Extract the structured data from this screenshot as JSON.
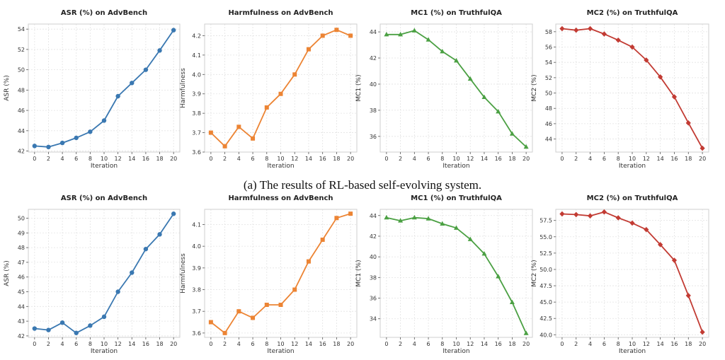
{
  "captions": {
    "a": "(a) The results of RL-based self-evolving system.",
    "b": ""
  },
  "chart_data": [
    {
      "type": "line",
      "row": 0,
      "col": 0,
      "title": "ASR (%) on AdvBench",
      "xlabel": "Iteration",
      "ylabel": "ASR (%)",
      "color": "#3a78b1",
      "marker": "circle",
      "x": [
        0,
        2,
        4,
        6,
        8,
        10,
        12,
        14,
        16,
        18,
        20
      ],
      "values": [
        42.5,
        42.4,
        42.8,
        43.3,
        43.9,
        45.0,
        47.4,
        48.7,
        50.0,
        51.9,
        53.9
      ],
      "ylim": [
        41.9,
        54.5
      ],
      "yticks": [
        42,
        44,
        46,
        48,
        50,
        52,
        54
      ],
      "ytick_labels": [
        "42",
        "44",
        "46",
        "48",
        "50",
        "52",
        "54"
      ],
      "xticks": [
        0,
        2,
        4,
        6,
        8,
        10,
        12,
        14,
        16,
        18,
        20
      ],
      "grid": true
    },
    {
      "type": "line",
      "row": 0,
      "col": 1,
      "title": "Harmfulness on AdvBench",
      "xlabel": "Iteration",
      "ylabel": "Harmfulness",
      "color": "#ec8434",
      "marker": "square",
      "x": [
        0,
        2,
        4,
        6,
        8,
        10,
        12,
        14,
        16,
        18,
        20
      ],
      "values": [
        3.7,
        3.63,
        3.73,
        3.67,
        3.83,
        3.9,
        4.0,
        4.13,
        4.2,
        4.23,
        4.2
      ],
      "ylim": [
        3.6,
        4.26
      ],
      "yticks": [
        3.6,
        3.7,
        3.8,
        3.9,
        4.0,
        4.1,
        4.2
      ],
      "ytick_labels": [
        "3.6",
        "3.7",
        "3.8",
        "3.9",
        "4.0",
        "4.1",
        "4.2"
      ],
      "xticks": [
        0,
        2,
        4,
        6,
        8,
        10,
        12,
        14,
        16,
        18,
        20
      ],
      "grid": true
    },
    {
      "type": "line",
      "row": 0,
      "col": 2,
      "title": "MC1 (%) on TruthfulQA",
      "xlabel": "Iteration",
      "ylabel": "MC1 (%)",
      "color": "#4ba043",
      "marker": "triangle",
      "x": [
        0,
        2,
        4,
        6,
        8,
        10,
        12,
        14,
        16,
        18,
        20
      ],
      "values": [
        43.8,
        43.8,
        44.1,
        43.4,
        42.5,
        41.8,
        40.4,
        39.0,
        37.9,
        36.2,
        35.2
      ],
      "ylim": [
        34.8,
        44.6
      ],
      "yticks": [
        36,
        38,
        40,
        42,
        44
      ],
      "ytick_labels": [
        "36",
        "38",
        "40",
        "42",
        "44"
      ],
      "xticks": [
        0,
        2,
        4,
        6,
        8,
        10,
        12,
        14,
        16,
        18,
        20
      ],
      "grid": true
    },
    {
      "type": "line",
      "row": 0,
      "col": 3,
      "title": "MC2 (%) on TruthfulQA",
      "xlabel": "Iteration",
      "ylabel": "MC2 (%)",
      "color": "#c23b33",
      "marker": "diamond",
      "x": [
        0,
        2,
        4,
        6,
        8,
        10,
        12,
        14,
        16,
        18,
        20
      ],
      "values": [
        58.4,
        58.2,
        58.4,
        57.7,
        56.9,
        56.0,
        54.3,
        52.1,
        49.5,
        46.1,
        42.8
      ],
      "ylim": [
        42.3,
        59.0
      ],
      "yticks": [
        44,
        46,
        48,
        50,
        52,
        54,
        56,
        58
      ],
      "ytick_labels": [
        "44",
        "46",
        "48",
        "50",
        "52",
        "54",
        "56",
        "58"
      ],
      "xticks": [
        0,
        2,
        4,
        6,
        8,
        10,
        12,
        14,
        16,
        18,
        20
      ],
      "grid": true
    },
    {
      "type": "line",
      "row": 1,
      "col": 0,
      "title": "ASR (%) on AdvBench",
      "xlabel": "Iteration",
      "ylabel": "ASR (%)",
      "color": "#3a78b1",
      "marker": "circle",
      "x": [
        0,
        2,
        4,
        6,
        8,
        10,
        12,
        14,
        16,
        18,
        20
      ],
      "values": [
        42.5,
        42.4,
        42.9,
        42.2,
        42.7,
        43.3,
        45.0,
        46.3,
        47.9,
        48.9,
        50.3
      ],
      "ylim": [
        41.9,
        50.6
      ],
      "yticks": [
        42,
        43,
        44,
        45,
        46,
        47,
        48,
        49,
        50
      ],
      "ytick_labels": [
        "42",
        "43",
        "44",
        "45",
        "46",
        "47",
        "48",
        "49",
        "50"
      ],
      "xticks": [
        0,
        2,
        4,
        6,
        8,
        10,
        12,
        14,
        16,
        18,
        20
      ],
      "grid": true
    },
    {
      "type": "line",
      "row": 1,
      "col": 1,
      "title": "Harmfulness on AdvBench",
      "xlabel": "Iteration",
      "ylabel": "Harmfulness",
      "color": "#ec8434",
      "marker": "square",
      "x": [
        0,
        2,
        4,
        6,
        8,
        10,
        12,
        14,
        16,
        18,
        20
      ],
      "values": [
        3.65,
        3.6,
        3.7,
        3.67,
        3.73,
        3.73,
        3.8,
        3.93,
        4.03,
        4.13,
        4.15
      ],
      "ylim": [
        3.58,
        4.17
      ],
      "yticks": [
        3.6,
        3.7,
        3.8,
        3.9,
        4.0,
        4.1
      ],
      "ytick_labels": [
        "3.6",
        "3.7",
        "3.8",
        "3.9",
        "4.0",
        "4.1"
      ],
      "xticks": [
        0,
        2,
        4,
        6,
        8,
        10,
        12,
        14,
        16,
        18,
        20
      ],
      "grid": true
    },
    {
      "type": "line",
      "row": 1,
      "col": 2,
      "title": "MC1 (%) on TruthfulQA",
      "xlabel": "Iteration",
      "ylabel": "MC1 (%)",
      "color": "#4ba043",
      "marker": "triangle",
      "x": [
        0,
        2,
        4,
        6,
        8,
        10,
        12,
        14,
        16,
        18,
        20
      ],
      "values": [
        43.8,
        43.5,
        43.8,
        43.7,
        43.2,
        42.8,
        41.7,
        40.3,
        38.1,
        35.6,
        32.6
      ],
      "ylim": [
        32.2,
        44.6
      ],
      "yticks": [
        34,
        36,
        38,
        40,
        42,
        44
      ],
      "ytick_labels": [
        "34",
        "36",
        "38",
        "40",
        "42",
        "44"
      ],
      "xticks": [
        0,
        2,
        4,
        6,
        8,
        10,
        12,
        14,
        16,
        18,
        20
      ],
      "grid": true
    },
    {
      "type": "line",
      "row": 1,
      "col": 3,
      "title": "MC2 (%) on TruthfulQA",
      "xlabel": "Iteration",
      "ylabel": "MC2 (%)",
      "color": "#c23b33",
      "marker": "diamond",
      "x": [
        0,
        2,
        4,
        6,
        8,
        10,
        12,
        14,
        16,
        18,
        20
      ],
      "values": [
        58.5,
        58.4,
        58.2,
        58.8,
        57.9,
        57.1,
        56.1,
        53.8,
        51.4,
        46.0,
        40.4
      ],
      "ylim": [
        39.6,
        59.2
      ],
      "yticks": [
        40.0,
        42.5,
        45.0,
        47.5,
        50.0,
        52.5,
        55.0,
        57.5
      ],
      "ytick_labels": [
        "40.0",
        "42.5",
        "45.0",
        "47.5",
        "50.0",
        "52.5",
        "55.0",
        "57.5"
      ],
      "xticks": [
        0,
        2,
        4,
        6,
        8,
        10,
        12,
        14,
        16,
        18,
        20
      ],
      "grid": true
    }
  ]
}
